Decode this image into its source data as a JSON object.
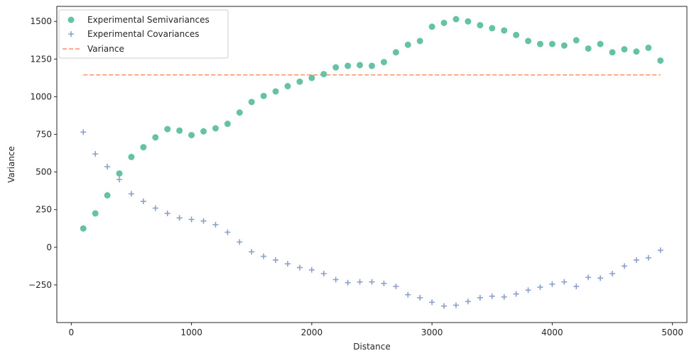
{
  "chart_data": {
    "type": "scatter",
    "xlabel": "Distance",
    "ylabel": "Variance",
    "xlim": [
      -120,
      5120
    ],
    "ylim": [
      -500,
      1600
    ],
    "xticks": [
      0,
      1000,
      2000,
      3000,
      4000,
      5000
    ],
    "yticks": [
      -250,
      0,
      250,
      500,
      750,
      1000,
      1250,
      1500
    ],
    "grid": false,
    "legend_position": "top-left",
    "colors": {
      "semivariance": "#66c2a5",
      "covariance": "#8da0cb",
      "variance": "#fc8d62",
      "axes": "#262626"
    },
    "series": [
      {
        "name": "Experimental Semivariances",
        "marker": "circle",
        "x": [
          100,
          200,
          300,
          400,
          500,
          600,
          700,
          800,
          900,
          1000,
          1100,
          1200,
          1300,
          1400,
          1500,
          1600,
          1700,
          1800,
          1900,
          2000,
          2100,
          2200,
          2300,
          2400,
          2500,
          2600,
          2700,
          2800,
          2900,
          3000,
          3100,
          3200,
          3300,
          3400,
          3500,
          3600,
          3700,
          3800,
          3900,
          4000,
          4100,
          4200,
          4300,
          4400,
          4500,
          4600,
          4700,
          4800,
          4900
        ],
        "y": [
          125,
          225,
          345,
          490,
          600,
          665,
          730,
          785,
          775,
          745,
          770,
          790,
          820,
          895,
          965,
          1005,
          1035,
          1070,
          1100,
          1125,
          1150,
          1195,
          1205,
          1210,
          1205,
          1230,
          1295,
          1345,
          1370,
          1465,
          1490,
          1515,
          1500,
          1475,
          1455,
          1440,
          1410,
          1370,
          1350,
          1350,
          1340,
          1375,
          1320,
          1350,
          1295,
          1315,
          1300,
          1325,
          1240
        ]
      },
      {
        "name": "Experimental Covariances",
        "marker": "plus",
        "x": [
          100,
          200,
          300,
          400,
          500,
          600,
          700,
          800,
          900,
          1000,
          1100,
          1200,
          1300,
          1400,
          1500,
          1600,
          1700,
          1800,
          1900,
          2000,
          2100,
          2200,
          2300,
          2400,
          2500,
          2600,
          2700,
          2800,
          2900,
          3000,
          3100,
          3200,
          3300,
          3400,
          3500,
          3600,
          3700,
          3800,
          3900,
          4000,
          4100,
          4200,
          4300,
          4400,
          4500,
          4600,
          4700,
          4800,
          4900
        ],
        "y": [
          765,
          620,
          535,
          450,
          355,
          305,
          260,
          225,
          195,
          185,
          175,
          150,
          100,
          35,
          -30,
          -60,
          -85,
          -110,
          -135,
          -150,
          -175,
          -215,
          -235,
          -230,
          -230,
          -240,
          -260,
          -315,
          -335,
          -365,
          -390,
          -385,
          -360,
          -335,
          -325,
          -330,
          -310,
          -285,
          -265,
          -245,
          -230,
          -260,
          -200,
          -205,
          -175,
          -125,
          -85,
          -70,
          -20
        ]
      },
      {
        "name": "Variance",
        "marker": "dashed-line",
        "x": [
          100,
          4900
        ],
        "y": [
          1145,
          1145
        ]
      }
    ]
  }
}
